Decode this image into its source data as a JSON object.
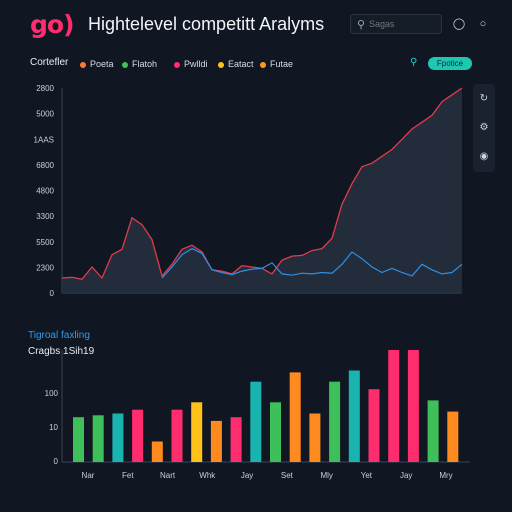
{
  "header": {
    "logo": "go)",
    "title": "Hightelevel competitt Aralyms",
    "search_placeholder": "Sagas",
    "icons": [
      "bell-icon",
      "user-icon"
    ]
  },
  "legend": {
    "title": "Cortefler",
    "items": [
      {
        "label": "Poeta",
        "color": "#ff7a2f"
      },
      {
        "label": "Flatoh",
        "color": "#3fbf5a"
      },
      {
        "label": "Pwlldi",
        "color": "#ff2d6e"
      },
      {
        "label": "Eatact",
        "color": "#ffc21a"
      },
      {
        "label": "Futae",
        "color": "#ff9a1f"
      }
    ],
    "search_icon": "search-icon",
    "filter_label": "Fpotice"
  },
  "side_toolbar": [
    "zoom-icon",
    "settings-icon",
    "refresh-icon"
  ],
  "section2": {
    "title": "Tigroal faxling",
    "subtitle": "Cragbs 1Sih19"
  },
  "chart_data": [
    {
      "type": "area",
      "title": "",
      "xlabel": "",
      "ylabel": "",
      "yticks": [
        "2800",
        "5000",
        "1AAS",
        "6800",
        "4800",
        "3300",
        "5500",
        "2300",
        "0"
      ],
      "ylim": [
        0,
        3000
      ],
      "x": [
        0,
        1,
        2,
        3,
        4,
        5,
        6,
        7,
        8,
        9,
        10,
        11,
        12,
        13,
        14,
        15,
        16,
        17,
        18,
        19,
        20,
        21,
        22,
        23,
        24,
        25,
        26,
        27,
        28,
        29,
        30,
        31,
        32,
        33,
        34,
        35,
        36,
        37,
        38,
        39,
        40
      ],
      "series": [
        {
          "color": "#e23a4a",
          "fill": "#26303f",
          "values": [
            220,
            230,
            200,
            380,
            220,
            560,
            640,
            1100,
            1000,
            780,
            250,
            420,
            640,
            700,
            600,
            340,
            320,
            280,
            400,
            380,
            360,
            280,
            480,
            540,
            550,
            620,
            650,
            800,
            1300,
            1600,
            1850,
            1900,
            2000,
            2100,
            2250,
            2400,
            2500,
            2600,
            2800,
            2900,
            3000
          ]
        },
        {
          "color": "#2f8ee6",
          "values": [
            null,
            null,
            null,
            null,
            null,
            null,
            null,
            null,
            null,
            null,
            220,
            380,
            560,
            650,
            580,
            340,
            300,
            270,
            320,
            350,
            360,
            440,
            280,
            260,
            290,
            280,
            300,
            290,
            420,
            600,
            500,
            380,
            300,
            360,
            300,
            250,
            420,
            340,
            280,
            300,
            420
          ]
        }
      ]
    },
    {
      "type": "bar",
      "title": "",
      "xlabel": "",
      "ylabel": "",
      "yticks": [
        "100",
        "10",
        "0"
      ],
      "ylim": [
        0,
        300
      ],
      "categories": [
        "Nar",
        "Fet",
        "Nart",
        "Whk",
        "Jay",
        "Set",
        "Mly",
        "Yet",
        "Jay",
        "Mry"
      ],
      "bars": [
        {
          "v": 120,
          "c": "#3fbf5a"
        },
        {
          "v": 125,
          "c": "#3fbf5a"
        },
        {
          "v": 130,
          "c": "#19b3b0"
        },
        {
          "v": 140,
          "c": "#ff2d6e"
        },
        {
          "v": 55,
          "c": "#ff8a1f"
        },
        {
          "v": 140,
          "c": "#ff2d6e"
        },
        {
          "v": 160,
          "c": "#ffc21a"
        },
        {
          "v": 110,
          "c": "#ff8a1f"
        },
        {
          "v": 120,
          "c": "#ff2d6e"
        },
        {
          "v": 215,
          "c": "#19b3b0"
        },
        {
          "v": 160,
          "c": "#3fbf5a"
        },
        {
          "v": 240,
          "c": "#ff8a1f"
        },
        {
          "v": 130,
          "c": "#ff8a1f"
        },
        {
          "v": 215,
          "c": "#3fbf5a"
        },
        {
          "v": 245,
          "c": "#19b3b0"
        },
        {
          "v": 195,
          "c": "#ff2d6e"
        },
        {
          "v": 300,
          "c": "#ff2d6e"
        },
        {
          "v": 300,
          "c": "#ff2d6e"
        },
        {
          "v": 165,
          "c": "#3fbf5a"
        },
        {
          "v": 135,
          "c": "#ff8a1f"
        }
      ]
    }
  ]
}
